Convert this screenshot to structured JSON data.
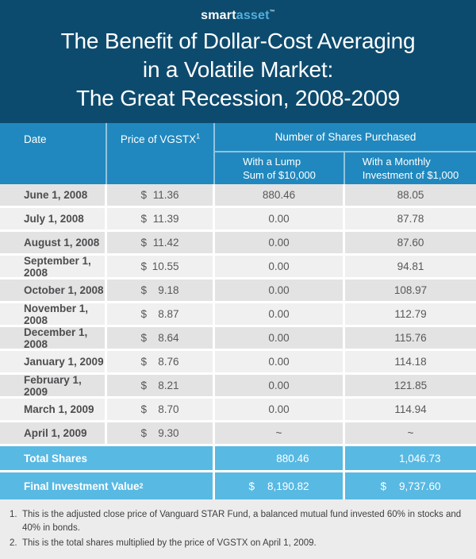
{
  "brand": {
    "smart": "smart",
    "asset": "asset",
    "tm": "™"
  },
  "title": {
    "line1": "The Benefit of Dollar-Cost Averaging",
    "line2": "in a Volatile Market:",
    "line3": "The Great Recession, 2008-2009"
  },
  "table": {
    "col_date": "Date",
    "col_price": "Price of VGSTX",
    "col_price_sup": "1",
    "group_header": "Number of Shares Purchased",
    "col_lump_line1": "With a Lump",
    "col_lump_line2": "Sum of $10,000",
    "col_monthly_line1": "With a Monthly",
    "col_monthly_line2": "Investment of $1,000",
    "rows": [
      {
        "date": "June 1, 2008",
        "currency": "$",
        "price": "11.36",
        "lump": "880.46",
        "monthly": "88.05"
      },
      {
        "date": "July 1, 2008",
        "currency": "$",
        "price": "11.39",
        "lump": "0.00",
        "monthly": "87.78"
      },
      {
        "date": "August 1, 2008",
        "currency": "$",
        "price": "11.42",
        "lump": "0.00",
        "monthly": "87.60"
      },
      {
        "date": "September 1, 2008",
        "currency": "$",
        "price": "10.55",
        "lump": "0.00",
        "monthly": "94.81"
      },
      {
        "date": "October 1, 2008",
        "currency": "$",
        "price": "9.18",
        "lump": "0.00",
        "monthly": "108.97"
      },
      {
        "date": "November 1, 2008",
        "currency": "$",
        "price": "8.87",
        "lump": "0.00",
        "monthly": "112.79"
      },
      {
        "date": "December 1, 2008",
        "currency": "$",
        "price": "8.64",
        "lump": "0.00",
        "monthly": "115.76"
      },
      {
        "date": "January 1, 2009",
        "currency": "$",
        "price": "8.76",
        "lump": "0.00",
        "monthly": "114.18"
      },
      {
        "date": "February 1, 2009",
        "currency": "$",
        "price": "8.21",
        "lump": "0.00",
        "monthly": "121.85"
      },
      {
        "date": "March 1, 2009",
        "currency": "$",
        "price": "8.70",
        "lump": "0.00",
        "monthly": "114.94"
      },
      {
        "date": "April 1, 2009",
        "currency": "$",
        "price": "9.30",
        "lump": "~",
        "monthly": "~"
      }
    ],
    "totals": [
      {
        "label": "Total Shares",
        "sup": "",
        "lump_currency": "",
        "lump": "880.46",
        "monthly_currency": "",
        "monthly": "1,046.73"
      },
      {
        "label": "Final Investment Value",
        "sup": "2",
        "lump_currency": "$",
        "lump": "8,190.82",
        "monthly_currency": "$",
        "monthly": "9,737.60"
      }
    ]
  },
  "footnotes": [
    {
      "num": "1.",
      "text": "This is the adjusted close price of Vanguard STAR Fund, a balanced mutual fund invested 60% in stocks and 40% in bonds."
    },
    {
      "num": "2.",
      "text": "This is the total shares multiplied by the price of VGSTX on April 1, 2009."
    }
  ],
  "colors": {
    "hero_navy": "#0d4b6e",
    "header_blue": "#2088be",
    "totals_blue": "#58b9e3",
    "row_dark": "#e3e3e4",
    "row_light": "#f0f0f1",
    "footer_gray": "#ececec",
    "logo_asset_blue": "#4fb0de"
  },
  "chart_data": {
    "type": "table",
    "title": "The Benefit of Dollar-Cost Averaging in a Volatile Market: The Great Recession, 2008-2009",
    "columns": [
      "Date",
      "Price of VGSTX",
      "Shares Purchased With a Lump Sum of $10,000",
      "Shares Purchased With a Monthly Investment of $1,000"
    ],
    "rows": [
      [
        "June 1, 2008",
        11.36,
        880.46,
        88.05
      ],
      [
        "July 1, 2008",
        11.39,
        0.0,
        87.78
      ],
      [
        "August 1, 2008",
        11.42,
        0.0,
        87.6
      ],
      [
        "September 1, 2008",
        10.55,
        0.0,
        94.81
      ],
      [
        "October 1, 2008",
        9.18,
        0.0,
        108.97
      ],
      [
        "November 1, 2008",
        8.87,
        0.0,
        112.79
      ],
      [
        "December 1, 2008",
        8.64,
        0.0,
        115.76
      ],
      [
        "January 1, 2009",
        8.76,
        0.0,
        114.18
      ],
      [
        "February 1, 2009",
        8.21,
        0.0,
        121.85
      ],
      [
        "March 1, 2009",
        8.7,
        0.0,
        114.94
      ],
      [
        "April 1, 2009",
        9.3,
        null,
        null
      ]
    ],
    "totals": {
      "total_shares_lump": 880.46,
      "total_shares_monthly": 1046.73,
      "final_value_lump": 8190.82,
      "final_value_monthly": 9737.6
    }
  }
}
